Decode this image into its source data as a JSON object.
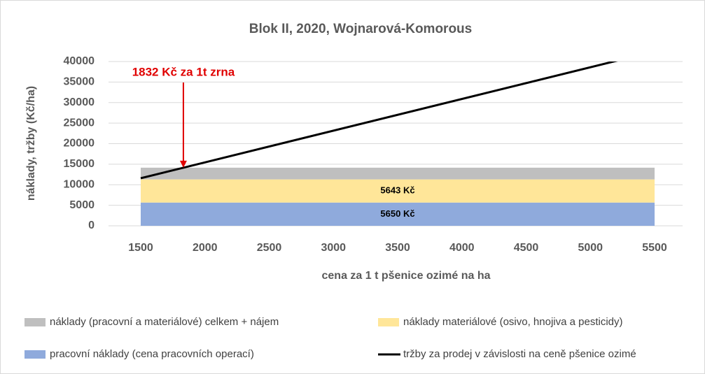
{
  "chart_data": {
    "type": "area",
    "title": "Blok II, 2020, Wojnarová-Komorous",
    "x_label": "cena za 1 t pšenice ozimé na ha",
    "y_label": "náklady, tržby (Kč/ha)",
    "x": [
      1500,
      5500
    ],
    "xlim": [
      1500,
      5500
    ],
    "xticks": [
      1500,
      2000,
      2500,
      3000,
      3500,
      4000,
      4500,
      5000,
      5500
    ],
    "ylim": [
      0,
      40000
    ],
    "yticks": [
      0,
      5000,
      10000,
      15000,
      20000,
      25000,
      30000,
      35000,
      40000
    ],
    "grid": true,
    "legend": "bottom",
    "series": [
      {
        "name": "pracovní náklady (cena pracovních operací)",
        "color": "#8faadc",
        "values": [
          5650,
          5650
        ],
        "value_label": "5650 Kč"
      },
      {
        "name": "náklady materiálové (osivo, hnojiva a pesticidy)",
        "color": "#ffe699",
        "values": [
          5643,
          5643
        ],
        "value_label": "5643 Kč"
      },
      {
        "name": "náklady (pracovní a materiálové) celkem + nájem",
        "color": "#bfbfbf",
        "values": [
          2850,
          2850
        ]
      },
      {
        "name": "tržby za prodej v závislosti na ceně pšenice ozimé",
        "color": "#000000",
        "type": "line",
        "values": [
          11580,
          42460
        ]
      }
    ],
    "annotation": {
      "text": "1832 Kč za 1t zrna",
      "x": 1832,
      "y": 14143,
      "color": "#e00000"
    }
  }
}
